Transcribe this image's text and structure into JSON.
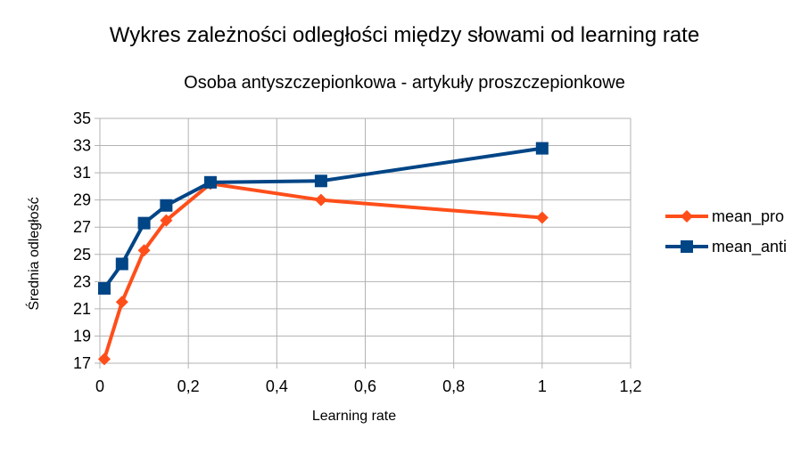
{
  "chart_data": {
    "type": "line",
    "title": "Wykres zależności odległości między słowami od learning rate",
    "subtitle": "Osoba antyszczepionkowa - artykuły proszczepionkowe",
    "xlabel": "Learning rate",
    "ylabel": "Średnia odległość",
    "xlim": [
      0,
      1.2
    ],
    "ylim": [
      17,
      35
    ],
    "xticks": [
      "0",
      "0,2",
      "0,4",
      "0,6",
      "0,8",
      "1",
      "1,2"
    ],
    "yticks": [
      "17",
      "19",
      "21",
      "23",
      "25",
      "27",
      "29",
      "31",
      "33",
      "35"
    ],
    "grid": true,
    "legend_position": "right",
    "series": [
      {
        "name": "mean_pro",
        "color": "#ff4e1a",
        "marker": "diamond",
        "x": [
          0.01,
          0.05,
          0.1,
          0.15,
          0.25,
          0.5,
          1.0
        ],
        "values": [
          17.3,
          21.5,
          25.3,
          27.5,
          30.2,
          29.0,
          27.7
        ]
      },
      {
        "name": "mean_anti",
        "color": "#004586",
        "marker": "square",
        "x": [
          0.01,
          0.05,
          0.1,
          0.15,
          0.25,
          0.5,
          1.0
        ],
        "values": [
          22.5,
          24.3,
          27.3,
          28.6,
          30.3,
          30.4,
          32.8
        ]
      }
    ]
  }
}
